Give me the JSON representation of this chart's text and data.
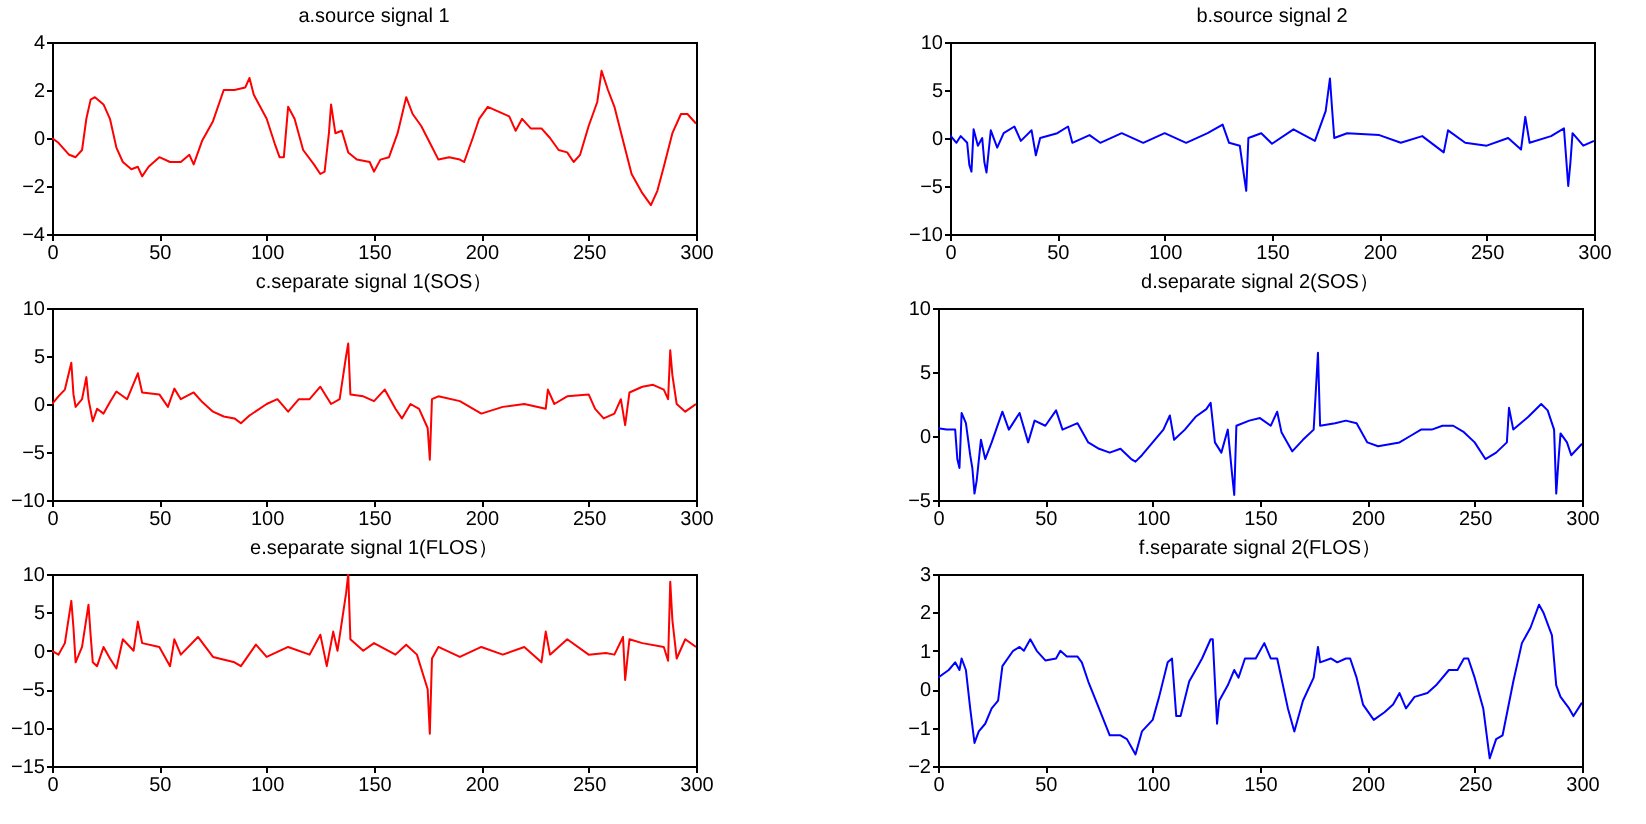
{
  "chart_data": [
    {
      "type": "line",
      "title": "a.source signal 1",
      "xlim": [
        0,
        300
      ],
      "xticks": [
        0,
        50,
        100,
        150,
        200,
        250,
        300
      ],
      "ylim": [
        -4,
        4
      ],
      "yticks": [
        -4,
        -2,
        0,
        2,
        4
      ],
      "grid": false,
      "x": [
        0,
        3,
        8,
        11,
        14,
        16,
        18,
        20,
        24,
        27,
        30,
        33,
        37,
        40,
        42,
        45,
        50,
        55,
        60,
        64,
        66,
        70,
        75,
        80,
        85,
        90,
        92,
        94,
        100,
        104,
        106,
        108,
        110,
        113,
        117,
        122,
        125,
        127,
        129,
        130,
        132,
        135,
        138,
        142,
        148,
        150,
        153,
        157,
        161,
        165,
        168,
        172,
        176,
        180,
        185,
        190,
        192,
        196,
        199,
        203,
        208,
        213,
        216,
        219,
        223,
        228,
        232,
        236,
        240,
        243,
        246,
        250,
        254,
        256,
        259,
        262,
        266,
        270,
        275,
        279,
        282,
        285,
        289,
        293,
        296,
        300
      ],
      "series": [
        {
          "color": "#ff0000",
          "values": [
            0,
            -0.2,
            -0.7,
            -0.8,
            -0.5,
            0.8,
            1.6,
            1.7,
            1.4,
            0.8,
            -0.4,
            -1,
            -1.3,
            -1.2,
            -1.6,
            -1.2,
            -0.8,
            -1,
            -1,
            -0.7,
            -1.1,
            -0.1,
            0.7,
            2,
            2,
            2.1,
            2.5,
            1.8,
            0.8,
            -0.3,
            -0.8,
            -0.8,
            1.3,
            0.8,
            -0.5,
            -1.1,
            -1.5,
            -1.4,
            0.2,
            1.4,
            0.2,
            0.3,
            -0.6,
            -0.9,
            -1,
            -1.4,
            -0.9,
            -0.8,
            0.2,
            1.7,
            1,
            0.5,
            -0.2,
            -0.9,
            -0.8,
            -0.9,
            -1,
            0,
            0.8,
            1.3,
            1.1,
            0.9,
            0.3,
            0.8,
            0.4,
            0.4,
            0,
            -0.5,
            -0.6,
            -1,
            -0.7,
            0.5,
            1.5,
            2.8,
            2,
            1.3,
            -0.1,
            -1.5,
            -2.3,
            -2.8,
            -2.2,
            -1.2,
            0.2,
            1,
            1,
            0.6
          ]
        }
      ]
    },
    {
      "type": "line",
      "title": "b.source signal 2",
      "xlim": [
        0,
        300
      ],
      "xticks": [
        0,
        50,
        100,
        150,
        200,
        250,
        300
      ],
      "ylim": [
        -10,
        10
      ],
      "yticks": [
        -10,
        -5,
        0,
        5,
        10
      ],
      "grid": false,
      "x": [
        0,
        3,
        5,
        8,
        9,
        10,
        11,
        13,
        15,
        16,
        17,
        19,
        22,
        25,
        30,
        33,
        38,
        40,
        42,
        50,
        55,
        57,
        65,
        70,
        80,
        90,
        100,
        110,
        120,
        127,
        130,
        135,
        137,
        138,
        139,
        145,
        150,
        160,
        170,
        175,
        177,
        178,
        179,
        185,
        200,
        210,
        220,
        230,
        232,
        240,
        250,
        260,
        266,
        268,
        270,
        280,
        286,
        288,
        289,
        290,
        295,
        300
      ],
      "series": [
        {
          "color": "#0000ff",
          "values": [
            0.3,
            -0.5,
            0.2,
            -0.5,
            -2.8,
            -3.5,
            0.9,
            -0.8,
            0,
            -2.5,
            -3.6,
            0.8,
            -1,
            0.5,
            1.2,
            -0.3,
            0.8,
            -1.8,
            0,
            0.5,
            1.2,
            -0.5,
            0.3,
            -0.5,
            0.5,
            -0.5,
            0.5,
            -0.5,
            0.5,
            1.4,
            -0.5,
            -0.8,
            -4,
            -5.5,
            0,
            0.5,
            -0.6,
            0.9,
            -0.3,
            2.8,
            6.2,
            3,
            0,
            0.5,
            0.3,
            -0.5,
            0.2,
            -1.5,
            0.8,
            -0.5,
            -0.8,
            0,
            -1.2,
            2.2,
            -0.5,
            0.2,
            1,
            -5,
            -2.6,
            0.5,
            -0.8,
            -0.3
          ]
        }
      ]
    },
    {
      "type": "line",
      "title": "c.separate signal 1(SOS）",
      "xlim": [
        0,
        300
      ],
      "xticks": [
        0,
        50,
        100,
        150,
        200,
        250,
        300
      ],
      "ylim": [
        -10,
        10
      ],
      "yticks": [
        -10,
        -5,
        0,
        5,
        10
      ],
      "grid": false,
      "x": [
        0,
        3,
        6,
        9,
        10,
        11,
        14,
        16,
        17,
        19,
        21,
        24,
        27,
        30,
        35,
        40,
        42,
        50,
        54,
        57,
        60,
        66,
        70,
        75,
        80,
        85,
        88,
        92,
        100,
        105,
        110,
        115,
        120,
        125,
        130,
        134,
        137,
        138,
        139,
        145,
        150,
        155,
        160,
        163,
        167,
        171,
        175,
        176,
        177,
        180,
        190,
        200,
        210,
        220,
        230,
        231,
        234,
        240,
        250,
        253,
        257,
        262,
        265,
        267,
        269,
        275,
        280,
        285,
        287,
        288,
        289,
        291,
        295,
        300
      ],
      "series": [
        {
          "color": "#ff0000",
          "values": [
            0,
            0.8,
            1.5,
            4.3,
            1,
            -0.3,
            0.5,
            2.8,
            0.5,
            -1.8,
            -0.5,
            -1,
            0.2,
            1.3,
            0.5,
            3.2,
            1.2,
            1,
            -0.3,
            1.6,
            0.5,
            1.2,
            0.2,
            -0.8,
            -1.3,
            -1.5,
            -2,
            -1.2,
            0,
            0.5,
            -0.8,
            0.5,
            0.5,
            1.8,
            0,
            0.5,
            5,
            6.3,
            1,
            0.8,
            0.3,
            1.5,
            -0.5,
            -1.5,
            0,
            -0.5,
            -2.5,
            -5.8,
            0.5,
            0.8,
            0.3,
            -1,
            -0.3,
            0,
            -0.5,
            1.5,
            0,
            0.8,
            1,
            -0.5,
            -1.5,
            -1,
            0.5,
            -2.2,
            1.2,
            1.8,
            2,
            1.5,
            0.5,
            5.6,
            3,
            0,
            -0.8,
            0
          ]
        }
      ]
    },
    {
      "type": "line",
      "title": "d.separate signal 2(SOS）",
      "xlim": [
        0,
        300
      ],
      "xticks": [
        0,
        50,
        100,
        150,
        200,
        250,
        300
      ],
      "ylim": [
        -5,
        10
      ],
      "yticks": [
        -5,
        0,
        5,
        10
      ],
      "grid": false,
      "x": [
        0,
        4,
        8,
        9,
        10,
        11,
        13,
        15,
        16,
        17,
        18,
        20,
        22,
        25,
        30,
        33,
        38,
        42,
        45,
        50,
        55,
        58,
        65,
        70,
        75,
        80,
        85,
        90,
        92,
        95,
        100,
        105,
        108,
        110,
        115,
        120,
        125,
        127,
        129,
        132,
        135,
        137,
        138,
        139,
        145,
        150,
        155,
        158,
        160,
        165,
        170,
        175,
        176,
        177,
        178,
        185,
        190,
        195,
        200,
        205,
        215,
        220,
        225,
        230,
        235,
        240,
        245,
        250,
        255,
        260,
        265,
        266,
        268,
        275,
        281,
        284,
        287,
        288,
        289,
        290,
        293,
        295,
        300
      ],
      "series": [
        {
          "color": "#0000ff",
          "values": [
            0.6,
            0.5,
            0.5,
            -1.8,
            -2.5,
            1.8,
            1,
            -1.5,
            -2.5,
            -4.5,
            -3.5,
            -0.3,
            -1.8,
            -0.5,
            1.9,
            0.5,
            1.8,
            -0.5,
            1.2,
            0.8,
            2,
            0.5,
            1,
            -0.5,
            -1,
            -1.3,
            -1,
            -1.8,
            -2,
            -1.5,
            -0.5,
            0.5,
            1.6,
            -0.3,
            0.5,
            1.5,
            2.1,
            2.6,
            -0.5,
            -1.3,
            0.5,
            -3,
            -4.6,
            0.8,
            1.2,
            1.4,
            0.8,
            1.9,
            0.3,
            -1.2,
            -0.3,
            0.5,
            3.5,
            6.5,
            0.8,
            1,
            1.2,
            1,
            -0.5,
            -0.8,
            -0.5,
            0,
            0.5,
            0.5,
            0.8,
            0.8,
            0.3,
            -0.5,
            -1.8,
            -1.3,
            -0.5,
            2.2,
            0.5,
            1.5,
            2.5,
            2,
            0.5,
            -4.5,
            -2,
            0.2,
            -0.5,
            -1.5,
            -0.6
          ]
        }
      ]
    },
    {
      "type": "line",
      "title": "e.separate signal 1(FLOS）",
      "xlim": [
        0,
        300
      ],
      "xticks": [
        0,
        50,
        100,
        150,
        200,
        250,
        300
      ],
      "ylim": [
        -15,
        10
      ],
      "yticks": [
        -15,
        -10,
        -5,
        0,
        5,
        10
      ],
      "grid": false,
      "x": [
        0,
        3,
        6,
        9,
        10,
        11,
        14,
        17,
        18,
        19,
        21,
        24,
        27,
        30,
        33,
        38,
        40,
        42,
        50,
        55,
        57,
        60,
        68,
        75,
        85,
        88,
        95,
        100,
        110,
        120,
        125,
        128,
        131,
        133,
        137,
        138,
        139,
        145,
        150,
        160,
        165,
        170,
        175,
        176,
        177,
        180,
        190,
        200,
        210,
        220,
        228,
        230,
        232,
        240,
        250,
        258,
        262,
        266,
        267,
        269,
        275,
        285,
        287,
        288,
        289,
        291,
        295,
        300
      ],
      "series": [
        {
          "color": "#ff0000",
          "values": [
            0,
            -0.5,
            1,
            6.5,
            3,
            -1.5,
            0.5,
            6,
            2,
            -1.5,
            -2,
            0.5,
            -1,
            -2.3,
            1.5,
            0,
            3.8,
            1,
            0.5,
            -2,
            1.5,
            -0.5,
            1.8,
            -0.8,
            -1.5,
            -2,
            0.8,
            -0.8,
            0.5,
            -0.5,
            2.1,
            -2,
            2.5,
            0,
            7.5,
            10,
            1.5,
            0,
            1,
            -0.5,
            0.8,
            -0.5,
            -5,
            -10.8,
            -1,
            0.5,
            -0.8,
            0.5,
            -0.5,
            0.5,
            -1.5,
            2.5,
            -0.5,
            1.5,
            -0.5,
            -0.3,
            -0.5,
            1.8,
            -3.8,
            1.5,
            1,
            0.5,
            -1.3,
            9,
            4,
            -1,
            1.5,
            0.5
          ]
        }
      ]
    },
    {
      "type": "line",
      "title": "f.separate signal 2(FLOS）",
      "xlim": [
        0,
        300
      ],
      "xticks": [
        0,
        50,
        100,
        150,
        200,
        250,
        300
      ],
      "ylim": [
        -2,
        3
      ],
      "yticks": [
        -2,
        -1,
        0,
        1,
        2,
        3
      ],
      "grid": false,
      "x": [
        0,
        5,
        8,
        10,
        11,
        13,
        15,
        17,
        19,
        22,
        25,
        28,
        30,
        35,
        38,
        40,
        43,
        46,
        50,
        55,
        57,
        60,
        65,
        67,
        70,
        75,
        80,
        85,
        88,
        90,
        92,
        95,
        100,
        103,
        107,
        109,
        111,
        113,
        117,
        121,
        123,
        127,
        128,
        130,
        131,
        135,
        138,
        140,
        143,
        148,
        152,
        155,
        158,
        163,
        166,
        170,
        175,
        177,
        178,
        183,
        186,
        190,
        192,
        195,
        198,
        203,
        208,
        212,
        215,
        218,
        222,
        228,
        232,
        238,
        242,
        245,
        247,
        250,
        254,
        257,
        260,
        263,
        268,
        272,
        276,
        280,
        282,
        286,
        288,
        290,
        294,
        296,
        300
      ],
      "series": [
        {
          "color": "#0000ff",
          "values": [
            0.3,
            0.5,
            0.7,
            0.5,
            0.8,
            0.5,
            -0.5,
            -1.4,
            -1.1,
            -0.9,
            -0.5,
            -0.3,
            0.6,
            1,
            1.1,
            1,
            1.3,
            1,
            0.75,
            0.8,
            1,
            0.85,
            0.85,
            0.7,
            0.2,
            -0.5,
            -1.2,
            -1.2,
            -1.3,
            -1.5,
            -1.7,
            -1.1,
            -0.8,
            -0.2,
            0.7,
            0.8,
            -0.7,
            -0.7,
            0.2,
            0.6,
            0.8,
            1.3,
            1.3,
            -0.9,
            -0.3,
            0.1,
            0.5,
            0.3,
            0.8,
            0.8,
            1.2,
            0.8,
            0.8,
            -0.5,
            -1.1,
            -0.3,
            0.3,
            1.1,
            0.7,
            0.8,
            0.7,
            0.8,
            0.8,
            0.3,
            -0.4,
            -0.8,
            -0.6,
            -0.4,
            -0.1,
            -0.5,
            -0.2,
            -0.1,
            0.1,
            0.5,
            0.5,
            0.8,
            0.8,
            0.3,
            -0.5,
            -1.8,
            -1.3,
            -1.2,
            0.2,
            1.2,
            1.6,
            2.2,
            2,
            1.4,
            0.1,
            -0.2,
            -0.5,
            -0.7,
            -0.35
          ]
        }
      ]
    }
  ]
}
